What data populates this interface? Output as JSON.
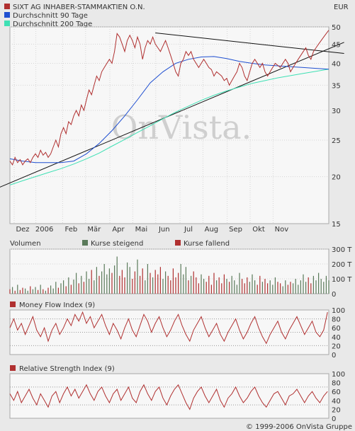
{
  "chart_data": [
    {
      "id": "price",
      "type": "line",
      "title": "SIXT AG INHABER-STAMMAKTIEN O.N.",
      "currency": "EUR",
      "watermark": "OnVista.",
      "scale": "log",
      "ylim": [
        15,
        50
      ],
      "yticks": [
        50,
        45,
        40,
        35,
        30,
        25,
        20,
        15
      ],
      "xlabels": [
        "Dez",
        "2006",
        "Feb",
        "Mär",
        "Apr",
        "Mai",
        "Jun",
        "Jul",
        "Aug",
        "Sep",
        "Okt",
        "Nov"
      ],
      "series": [
        {
          "name": "SIXT AG INHABER-STAMMAKTIEN O.N.",
          "color": "#b03030",
          "x": [
            0,
            2,
            4,
            6,
            8,
            10,
            12,
            14,
            16,
            18,
            20,
            22,
            24,
            26,
            28,
            30,
            32,
            34,
            36,
            38,
            40,
            42,
            44,
            46,
            48,
            50,
            52,
            54,
            56,
            58,
            60,
            62,
            64,
            66,
            68,
            70,
            72,
            74,
            76,
            78,
            80,
            82,
            84,
            86,
            88,
            90,
            92,
            94,
            96,
            98,
            100,
            102,
            104,
            106,
            108,
            110,
            112,
            114,
            116,
            118,
            120,
            122,
            124,
            126,
            128,
            130,
            132,
            134,
            136,
            138,
            140,
            142,
            144,
            146,
            148,
            150,
            152,
            154,
            156,
            158,
            160,
            162,
            164,
            166,
            168,
            170,
            172,
            174,
            176,
            178,
            180,
            182,
            184,
            186,
            188,
            190,
            192,
            194,
            196,
            198,
            200,
            202,
            204,
            206,
            208,
            210,
            212,
            214,
            216,
            218,
            220,
            222,
            224,
            226,
            228,
            230,
            232,
            234,
            236,
            238,
            240,
            242,
            244,
            246,
            248,
            250
          ],
          "values": [
            22.0,
            21.5,
            22.5,
            21.8,
            22.2,
            21.5,
            22.0,
            22.3,
            21.8,
            22.5,
            23.0,
            22.5,
            23.5,
            22.8,
            23.2,
            22.5,
            23.0,
            24.0,
            25.0,
            24.0,
            26.0,
            27.0,
            26.0,
            28.0,
            27.5,
            29.0,
            30.0,
            29.0,
            31.0,
            30.0,
            32.0,
            34.0,
            33.0,
            35.0,
            37.0,
            36.0,
            38.0,
            39.0,
            40.0,
            41.0,
            40.0,
            43.0,
            48.0,
            47.0,
            45.0,
            43.0,
            46.0,
            47.5,
            46.0,
            44.0,
            47.0,
            45.0,
            41.0,
            44.0,
            46.0,
            45.0,
            47.0,
            45.0,
            44.0,
            43.0,
            44.5,
            46.0,
            44.0,
            42.0,
            40.0,
            38.0,
            37.0,
            40.0,
            41.0,
            43.0,
            42.0,
            43.0,
            41.0,
            40.0,
            39.0,
            40.0,
            41.0,
            40.0,
            39.0,
            38.5,
            37.0,
            38.0,
            37.5,
            37.0,
            36.0,
            36.5,
            35.0,
            36.0,
            37.0,
            38.0,
            40.0,
            39.0,
            37.0,
            36.0,
            38.0,
            40.0,
            41.0,
            40.0,
            39.0,
            40.0,
            38.0,
            37.0,
            38.0,
            39.0,
            40.0,
            39.5,
            39.0,
            40.0,
            41.0,
            40.0,
            38.0,
            39.0,
            40.0,
            41.0,
            42.0,
            43.0,
            44.0,
            42.0,
            41.0,
            43.0,
            44.0,
            45.0,
            46.0,
            47.0,
            48.0,
            49.0
          ]
        },
        {
          "name": "Durchschnitt 90 Tage",
          "color": "#1f4fd0",
          "x": [
            0,
            10,
            20,
            30,
            40,
            50,
            60,
            70,
            80,
            90,
            100,
            110,
            120,
            130,
            140,
            150,
            160,
            170,
            180,
            190,
            200,
            210,
            220,
            230,
            240,
            250
          ],
          "values": [
            22.3,
            22.0,
            21.8,
            21.8,
            21.8,
            22.0,
            23.0,
            24.5,
            26.5,
            29.0,
            32.0,
            35.5,
            38.0,
            40.0,
            41.0,
            41.6,
            41.7,
            41.2,
            40.5,
            40.0,
            39.6,
            39.4,
            39.2,
            39.0,
            38.8,
            38.6
          ]
        },
        {
          "name": "Durchschnitt 200 Tage",
          "color": "#3ee0b4",
          "x": [
            0,
            10,
            20,
            30,
            40,
            50,
            60,
            70,
            80,
            90,
            100,
            110,
            120,
            130,
            140,
            150,
            160,
            170,
            180,
            190,
            200,
            210,
            220,
            230,
            240,
            250
          ],
          "values": [
            19.0,
            19.5,
            20.0,
            20.5,
            21.0,
            21.6,
            22.3,
            23.1,
            24.1,
            25.1,
            26.2,
            27.3,
            28.5,
            29.7,
            30.8,
            31.9,
            32.9,
            33.8,
            34.6,
            35.4,
            36.0,
            36.6,
            37.1,
            37.6,
            38.1,
            38.6
          ]
        }
      ],
      "trendlines": [
        {
          "x": [
            -12,
            262
          ],
          "values": [
            18.5,
            45.5
          ]
        },
        {
          "x": [
            114,
            262
          ],
          "values": [
            48.2,
            42.5
          ]
        }
      ]
    },
    {
      "id": "volume",
      "type": "bar",
      "title": "Volumen",
      "legend": [
        "Kurse steigend",
        "Kurse fallend"
      ],
      "colors": {
        "up": "#5a7a5a",
        "down": "#b03030"
      },
      "ylim": [
        0,
        300
      ],
      "yticks": [
        300,
        200,
        100,
        0
      ],
      "ytick_labels": [
        "300 T",
        "200 T",
        "100 T",
        "0"
      ],
      "x": [
        0,
        2,
        4,
        6,
        8,
        10,
        12,
        14,
        16,
        18,
        20,
        22,
        24,
        26,
        28,
        30,
        32,
        34,
        36,
        38,
        40,
        42,
        44,
        46,
        48,
        50,
        52,
        54,
        56,
        58,
        60,
        62,
        64,
        66,
        68,
        70,
        72,
        74,
        76,
        78,
        80,
        82,
        84,
        86,
        88,
        90,
        92,
        94,
        96,
        98,
        100,
        102,
        104,
        106,
        108,
        110,
        112,
        114,
        116,
        118,
        120,
        122,
        124,
        126,
        128,
        130,
        132,
        134,
        136,
        138,
        140,
        142,
        144,
        146,
        148,
        150,
        152,
        154,
        156,
        158,
        160,
        162,
        164,
        166,
        168,
        170,
        172,
        174,
        176,
        178,
        180,
        182,
        184,
        186,
        188,
        190,
        192,
        194,
        196,
        198,
        200,
        202,
        204,
        206,
        208,
        210,
        212,
        214,
        216,
        218,
        220,
        222,
        224,
        226,
        228,
        230,
        232,
        234,
        236,
        238,
        240,
        242,
        244,
        246,
        248,
        250
      ],
      "values": [
        30,
        45,
        20,
        60,
        25,
        40,
        35,
        20,
        50,
        30,
        45,
        25,
        60,
        30,
        20,
        40,
        55,
        35,
        80,
        40,
        70,
        90,
        50,
        110,
        60,
        95,
        140,
        70,
        120,
        80,
        150,
        100,
        160,
        90,
        180,
        120,
        150,
        200,
        130,
        170,
        140,
        190,
        250,
        120,
        160,
        110,
        210,
        180,
        100,
        150,
        230,
        120,
        170,
        90,
        200,
        140,
        110,
        160,
        130,
        180,
        100,
        150,
        120,
        90,
        170,
        110,
        140,
        200,
        130,
        180,
        90,
        120,
        150,
        110,
        70,
        130,
        100,
        80,
        120,
        60,
        140,
        90,
        110,
        70,
        130,
        100,
        80,
        120,
        90,
        60,
        140,
        100,
        70,
        110,
        80,
        130,
        90,
        60,
        120,
        80,
        100,
        70,
        90,
        60,
        110,
        80,
        70,
        50,
        90,
        60,
        80,
        70,
        100,
        60,
        90,
        130,
        80,
        110,
        70,
        120,
        90,
        140,
        100,
        80,
        120,
        90
      ],
      "direction": [
        "down",
        "up",
        "down",
        "up",
        "down",
        "down",
        "up",
        "up",
        "down",
        "up",
        "up",
        "down",
        "up",
        "down",
        "up",
        "down",
        "up",
        "up",
        "up",
        "down",
        "up",
        "up",
        "down",
        "up",
        "down",
        "up",
        "up",
        "down",
        "up",
        "down",
        "up",
        "up",
        "down",
        "up",
        "up",
        "down",
        "up",
        "up",
        "up",
        "up",
        "down",
        "up",
        "up",
        "down",
        "down",
        "down",
        "up",
        "up",
        "down",
        "down",
        "up",
        "down",
        "down",
        "up",
        "up",
        "down",
        "up",
        "down",
        "down",
        "down",
        "up",
        "up",
        "down",
        "down",
        "down",
        "down",
        "down",
        "up",
        "up",
        "up",
        "down",
        "up",
        "down",
        "down",
        "down",
        "up",
        "up",
        "down",
        "down",
        "down",
        "down",
        "up",
        "down",
        "down",
        "down",
        "up",
        "down",
        "up",
        "up",
        "up",
        "up",
        "down",
        "down",
        "down",
        "up",
        "up",
        "up",
        "down",
        "down",
        "up",
        "down",
        "down",
        "up",
        "up",
        "up",
        "down",
        "down",
        "up",
        "up",
        "down",
        "down",
        "up",
        "up",
        "up",
        "up",
        "up",
        "up",
        "down",
        "down",
        "up",
        "up",
        "up",
        "up",
        "up",
        "up",
        "up"
      ]
    },
    {
      "id": "mfi",
      "type": "line",
      "title": "Money Flow Index (9)",
      "color": "#b03030",
      "ylim": [
        0,
        100
      ],
      "yticks": [
        100,
        80,
        60,
        40,
        20,
        0
      ],
      "ref_lines": [
        80,
        50,
        20
      ],
      "x": [
        0,
        3,
        6,
        9,
        12,
        15,
        18,
        21,
        24,
        27,
        30,
        33,
        36,
        39,
        42,
        45,
        48,
        51,
        54,
        57,
        60,
        63,
        66,
        69,
        72,
        75,
        78,
        81,
        84,
        87,
        90,
        93,
        96,
        99,
        102,
        105,
        108,
        111,
        114,
        117,
        120,
        123,
        126,
        129,
        132,
        135,
        138,
        141,
        144,
        147,
        150,
        153,
        156,
        159,
        162,
        165,
        168,
        171,
        174,
        177,
        180,
        183,
        186,
        189,
        192,
        195,
        198,
        201,
        204,
        207,
        210,
        213,
        216,
        219,
        222,
        225,
        228,
        231,
        234,
        237,
        240,
        243,
        246,
        249
      ],
      "values": [
        60,
        80,
        55,
        70,
        45,
        65,
        85,
        55,
        40,
        60,
        30,
        55,
        70,
        45,
        60,
        80,
        65,
        90,
        75,
        95,
        70,
        85,
        60,
        75,
        90,
        65,
        45,
        70,
        55,
        35,
        60,
        80,
        55,
        40,
        65,
        90,
        75,
        50,
        70,
        85,
        60,
        40,
        55,
        75,
        90,
        65,
        45,
        30,
        55,
        70,
        85,
        60,
        40,
        55,
        70,
        45,
        30,
        50,
        65,
        80,
        55,
        35,
        50,
        70,
        85,
        60,
        40,
        25,
        45,
        60,
        75,
        50,
        35,
        55,
        70,
        85,
        65,
        45,
        60,
        75,
        50,
        40,
        55,
        95
      ]
    },
    {
      "id": "rsi",
      "type": "line",
      "title": "Relative Strength Index (9)",
      "color": "#b03030",
      "ylim": [
        0,
        100
      ],
      "yticks": [
        100,
        80,
        60,
        40,
        20,
        0
      ],
      "ref_lines": [
        70,
        30
      ],
      "x": [
        0,
        3,
        6,
        9,
        12,
        15,
        18,
        21,
        24,
        27,
        30,
        33,
        36,
        39,
        42,
        45,
        48,
        51,
        54,
        57,
        60,
        63,
        66,
        69,
        72,
        75,
        78,
        81,
        84,
        87,
        90,
        93,
        96,
        99,
        102,
        105,
        108,
        111,
        114,
        117,
        120,
        123,
        126,
        129,
        132,
        135,
        138,
        141,
        144,
        147,
        150,
        153,
        156,
        159,
        162,
        165,
        168,
        171,
        174,
        177,
        180,
        183,
        186,
        189,
        192,
        195,
        198,
        201,
        204,
        207,
        210,
        213,
        216,
        219,
        222,
        225,
        228,
        231,
        234,
        237,
        240,
        243,
        246,
        249
      ],
      "values": [
        55,
        40,
        60,
        35,
        50,
        65,
        45,
        30,
        55,
        40,
        25,
        50,
        60,
        35,
        55,
        70,
        50,
        65,
        45,
        60,
        75,
        55,
        40,
        60,
        70,
        50,
        35,
        55,
        65,
        40,
        55,
        70,
        45,
        35,
        60,
        75,
        55,
        40,
        60,
        70,
        45,
        30,
        50,
        65,
        75,
        55,
        35,
        20,
        45,
        60,
        70,
        50,
        35,
        50,
        65,
        40,
        25,
        45,
        55,
        70,
        50,
        35,
        45,
        60,
        70,
        50,
        35,
        25,
        40,
        55,
        60,
        45,
        30,
        50,
        55,
        65,
        50,
        35,
        50,
        60,
        45,
        35,
        50,
        60
      ]
    }
  ],
  "footer": {
    "copyright": "© 1999-2006 OnVista Gruppe"
  }
}
